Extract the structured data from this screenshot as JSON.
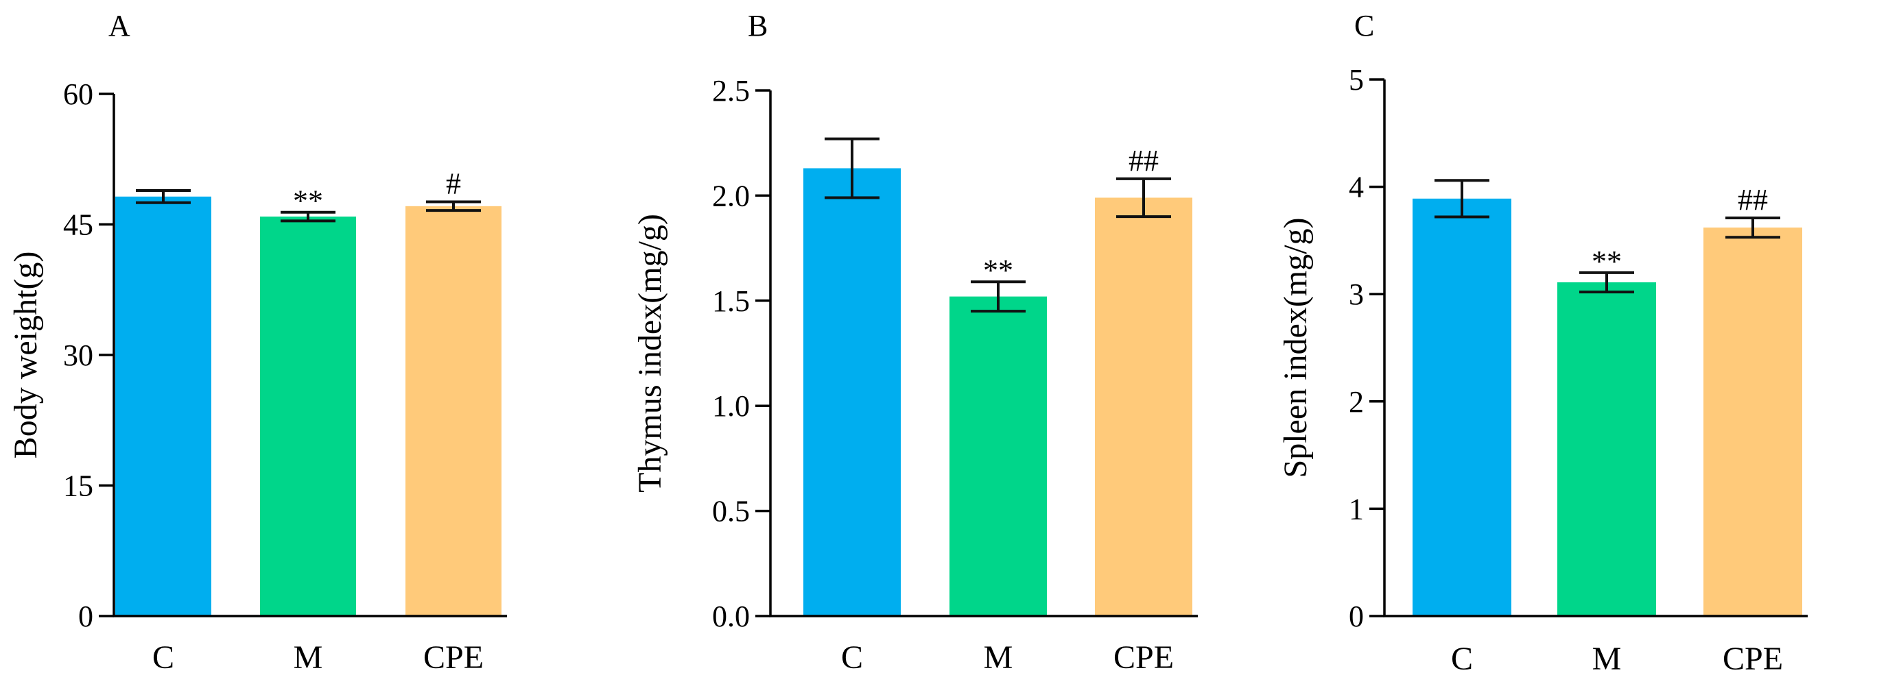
{
  "chart_data": [
    {
      "type": "bar",
      "panel": "A",
      "title": "",
      "xlabel": "",
      "ylabel": "Body weight(g)",
      "ylim": [
        0,
        60
      ],
      "yticks": [
        0,
        15,
        30,
        45,
        60
      ],
      "ytick_labels": [
        "0",
        "15",
        "30",
        "45",
        "60"
      ],
      "categories": [
        "C",
        "M",
        "CPE"
      ],
      "values": [
        48.2,
        45.9,
        47.1
      ],
      "errors": [
        0.7,
        0.5,
        0.5
      ],
      "annotations": [
        "",
        "**",
        "#"
      ],
      "colors": [
        "#00AEEF",
        "#00D68A",
        "#FFCA7A"
      ]
    },
    {
      "type": "bar",
      "panel": "B",
      "title": "",
      "xlabel": "",
      "ylabel": "Thymus index(mg/g)",
      "ylim": [
        0,
        2.5
      ],
      "yticks": [
        0,
        0.5,
        1,
        1.5,
        2,
        2.5
      ],
      "ytick_labels": [
        "0.0",
        "0.5",
        "1.0",
        "1.5",
        "2.0",
        "2.5"
      ],
      "categories": [
        "C",
        "M",
        "CPE"
      ],
      "values": [
        2.13,
        1.52,
        1.99
      ],
      "errors": [
        0.14,
        0.07,
        0.09
      ],
      "annotations": [
        "",
        "**",
        "##"
      ],
      "colors": [
        "#00AEEF",
        "#00D68A",
        "#FFCA7A"
      ]
    },
    {
      "type": "bar",
      "panel": "C",
      "title": "",
      "xlabel": "",
      "ylabel": "Spleen index(mg/g)",
      "ylim": [
        0,
        5
      ],
      "yticks": [
        0,
        1,
        2,
        3,
        4,
        5
      ],
      "ytick_labels": [
        "0",
        "1",
        "2",
        "3",
        "4",
        "5"
      ],
      "categories": [
        "C",
        "M",
        "CPE"
      ],
      "values": [
        3.89,
        3.11,
        3.62
      ],
      "errors": [
        0.17,
        0.09,
        0.09
      ],
      "annotations": [
        "",
        "**",
        "##"
      ],
      "colors": [
        "#00AEEF",
        "#00D68A",
        "#FFCA7A"
      ]
    }
  ]
}
